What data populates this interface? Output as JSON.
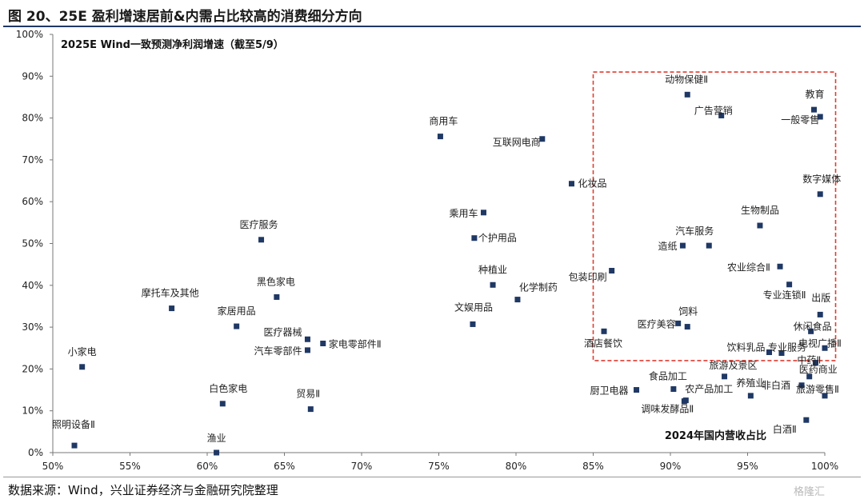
{
  "figure_title": "图 20、25E 盈利增速居前&内需占比较高的消费细分方向",
  "source": "数据来源：Wind，兴业证券经济与金融研究院整理",
  "watermark": "格隆汇",
  "chart_data": {
    "type": "scatter",
    "title": "2025E Wind一致预测净利润增速（截至5/9）",
    "xlabel": "2024年国内营收占比",
    "ylabel": "",
    "xlim": [
      0.5,
      1.0
    ],
    "ylim": [
      0.0,
      1.0
    ],
    "x_ticks": [
      "50%",
      "55%",
      "60%",
      "65%",
      "70%",
      "75%",
      "80%",
      "85%",
      "90%",
      "95%",
      "100%"
    ],
    "y_ticks": [
      "0%",
      "10%",
      "20%",
      "30%",
      "40%",
      "50%",
      "60%",
      "70%",
      "80%",
      "90%",
      "100%"
    ],
    "grid": false,
    "marker_color": "#1f3864",
    "highlight_box": {
      "x": [
        0.85,
        1.007
      ],
      "y": [
        0.22,
        0.91
      ],
      "color": "#e03c31",
      "style": "dashed"
    },
    "points": [
      {
        "label": "照明设备Ⅱ",
        "x": 0.514,
        "y": 0.017
      },
      {
        "label": "小家电",
        "x": 0.519,
        "y": 0.205
      },
      {
        "label": "摩托车及其他",
        "x": 0.577,
        "y": 0.345
      },
      {
        "label": "渔业",
        "x": 0.606,
        "y": 0.0
      },
      {
        "label": "白色家电",
        "x": 0.61,
        "y": 0.117
      },
      {
        "label": "家居用品",
        "x": 0.619,
        "y": 0.302
      },
      {
        "label": "医疗服务",
        "x": 0.635,
        "y": 0.509
      },
      {
        "label": "黑色家电",
        "x": 0.645,
        "y": 0.372
      },
      {
        "label": "医疗器械",
        "x": 0.665,
        "y": 0.271
      },
      {
        "label": "汽车零部件",
        "x": 0.665,
        "y": 0.245
      },
      {
        "label": "家电零部件Ⅱ",
        "x": 0.675,
        "y": 0.261
      },
      {
        "label": "贸易Ⅱ",
        "x": 0.667,
        "y": 0.104
      },
      {
        "label": "商用车",
        "x": 0.751,
        "y": 0.756
      },
      {
        "label": "互联网电商",
        "x": 0.817,
        "y": 0.75
      },
      {
        "label": "乘用车",
        "x": 0.779,
        "y": 0.574
      },
      {
        "label": "个护用品",
        "x": 0.773,
        "y": 0.513
      },
      {
        "label": "种植业",
        "x": 0.785,
        "y": 0.401
      },
      {
        "label": "化学制药",
        "x": 0.801,
        "y": 0.366
      },
      {
        "label": "文娱用品",
        "x": 0.772,
        "y": 0.307
      },
      {
        "label": "化妆品",
        "x": 0.836,
        "y": 0.643
      },
      {
        "label": "包装印刷",
        "x": 0.862,
        "y": 0.435
      },
      {
        "label": "酒店餐饮",
        "x": 0.857,
        "y": 0.29
      },
      {
        "label": "厨卫电器",
        "x": 0.878,
        "y": 0.15
      },
      {
        "label": "动物保健Ⅱ",
        "x": 0.911,
        "y": 0.856
      },
      {
        "label": "广告营销",
        "x": 0.933,
        "y": 0.806
      },
      {
        "label": "教育",
        "x": 0.993,
        "y": 0.82
      },
      {
        "label": "一般零售",
        "x": 0.997,
        "y": 0.803
      },
      {
        "label": "数字媒体",
        "x": 0.997,
        "y": 0.618
      },
      {
        "label": "生物制品",
        "x": 0.958,
        "y": 0.543
      },
      {
        "label": "汽车服务",
        "x": 0.925,
        "y": 0.495
      },
      {
        "label": "造纸",
        "x": 0.908,
        "y": 0.495
      },
      {
        "label": "农业综合Ⅱ",
        "x": 0.971,
        "y": 0.445
      },
      {
        "label": "专业连锁Ⅱ",
        "x": 0.977,
        "y": 0.402
      },
      {
        "label": "出版",
        "x": 0.997,
        "y": 0.33
      },
      {
        "label": "医疗美容",
        "x": 0.905,
        "y": 0.309
      },
      {
        "label": "饲料",
        "x": 0.911,
        "y": 0.301
      },
      {
        "label": "休闲食品",
        "x": 0.991,
        "y": 0.29
      },
      {
        "label": "电视广播Ⅱ",
        "x": 1.0,
        "y": 0.25
      },
      {
        "label": "饮料乳品",
        "x": 0.964,
        "y": 0.24
      },
      {
        "label": "专业服务",
        "x": 0.972,
        "y": 0.238
      },
      {
        "label": "中药Ⅱ",
        "x": 0.994,
        "y": 0.215
      },
      {
        "label": "旅游及景区",
        "x": 0.935,
        "y": 0.182
      },
      {
        "label": "医药商业",
        "x": 0.99,
        "y": 0.182
      },
      {
        "label": "食品加工",
        "x": 0.902,
        "y": 0.152
      },
      {
        "label": "农产品加工",
        "x": 0.91,
        "y": 0.125
      },
      {
        "label": "养殖业",
        "x": 0.952,
        "y": 0.136
      },
      {
        "label": "非白酒",
        "x": 0.985,
        "y": 0.161
      },
      {
        "label": "旅游零售Ⅱ",
        "x": 1.0,
        "y": 0.136
      },
      {
        "label": "调味发酵品Ⅱ",
        "x": 0.909,
        "y": 0.123
      },
      {
        "label": "白酒Ⅱ",
        "x": 0.988,
        "y": 0.078
      }
    ]
  }
}
